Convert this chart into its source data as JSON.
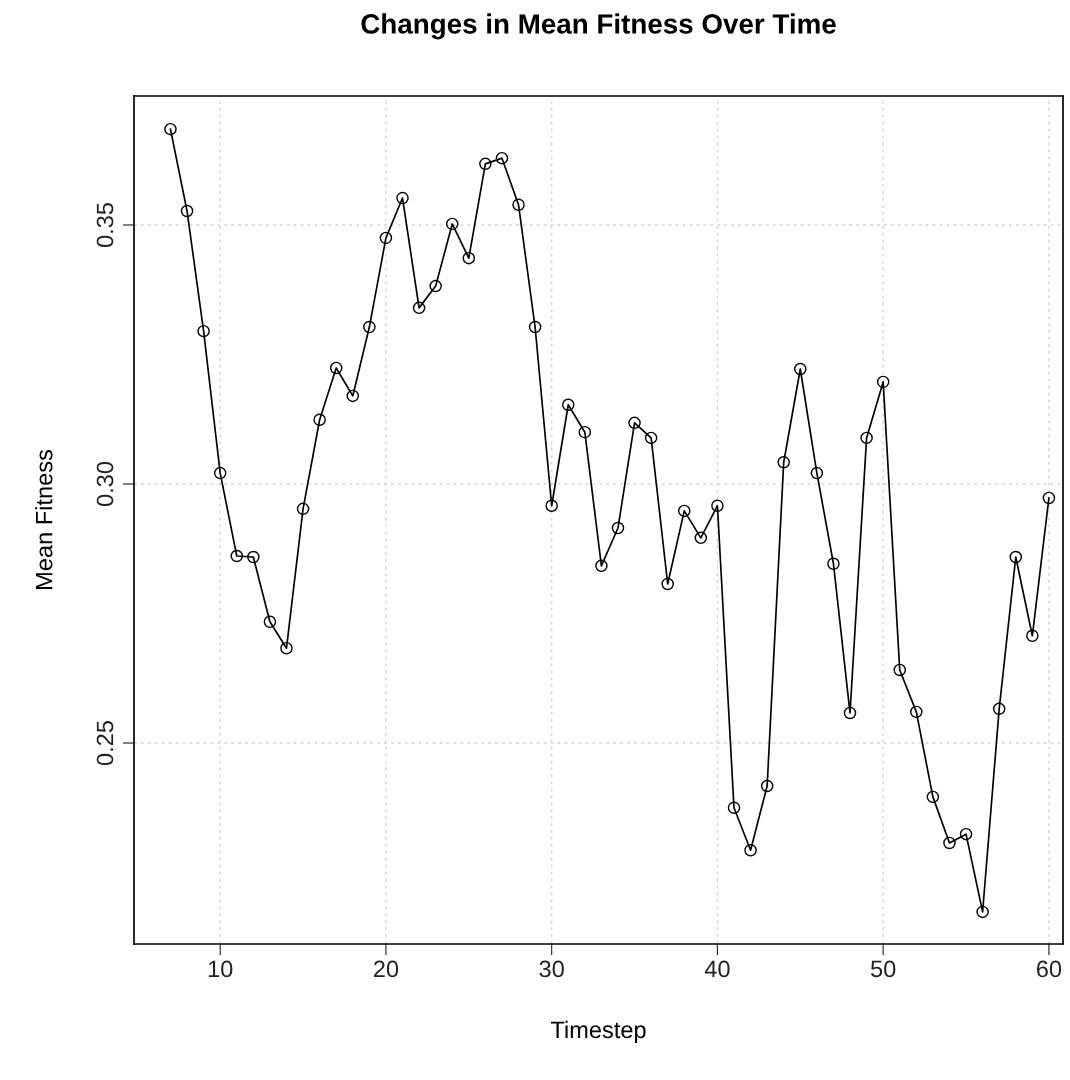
{
  "chart_data": {
    "type": "line",
    "title": "Changes in Mean Fitness Over Time",
    "xlabel": "Timestep",
    "ylabel": "Mean Fitness",
    "x": [
      7,
      8,
      9,
      10,
      11,
      12,
      13,
      14,
      15,
      16,
      17,
      18,
      19,
      20,
      21,
      22,
      23,
      24,
      25,
      26,
      27,
      28,
      29,
      30,
      31,
      32,
      33,
      34,
      35,
      36,
      37,
      38,
      39,
      40,
      41,
      42,
      43,
      44,
      45,
      46,
      47,
      48,
      49,
      50,
      51,
      52,
      53,
      54,
      55,
      56,
      57,
      58,
      59,
      60
    ],
    "series": [
      {
        "color": "#000000",
        "values": [
          0.3685,
          0.3527,
          0.3295,
          0.3021,
          0.2861,
          0.2859,
          0.2734,
          0.2683,
          0.2952,
          0.3124,
          0.3224,
          0.317,
          0.3303,
          0.3475,
          0.3552,
          0.334,
          0.3382,
          0.3502,
          0.3436,
          0.3618,
          0.3629,
          0.3539,
          0.3303,
          0.2958,
          0.3153,
          0.31,
          0.2842,
          0.2915,
          0.3118,
          0.3089,
          0.2807,
          0.2948,
          0.2896,
          0.2958,
          0.2375,
          0.2293,
          0.2417,
          0.3042,
          0.3222,
          0.3021,
          0.2846,
          0.2558,
          0.3089,
          0.3197,
          0.2641,
          0.256,
          0.2396,
          0.2307,
          0.2324,
          0.2174,
          0.2566,
          0.2859,
          0.2707,
          0.2973
        ]
      }
    ],
    "xlim": [
      4.8,
      60.85
    ],
    "ylim": [
      0.2112,
      0.3749
    ],
    "xticks": [
      10,
      20,
      30,
      40,
      50,
      60
    ],
    "yticks": [
      {
        "value": 0.25,
        "label": "0.25"
      },
      {
        "value": 0.3,
        "label": "0.30"
      },
      {
        "value": 0.35,
        "label": "0.35"
      }
    ],
    "grid": true,
    "marker": "circle",
    "line_style": "solid"
  }
}
